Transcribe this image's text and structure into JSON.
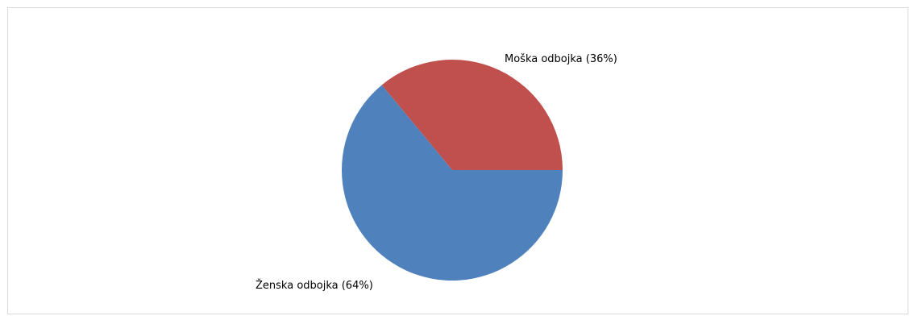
{
  "chart_data": {
    "type": "pie",
    "title": "",
    "slices": [
      {
        "name": "Moška odbojka",
        "value": 36,
        "label": "Moška odbojka (36%)",
        "color": "#c0504d"
      },
      {
        "name": "Ženska odbojka",
        "value": 64,
        "label": "Ženska odbojka (64%)",
        "color": "#4f81bd"
      }
    ],
    "legend": "none",
    "start_angle_deg": 0,
    "direction": "counterclockwise"
  }
}
